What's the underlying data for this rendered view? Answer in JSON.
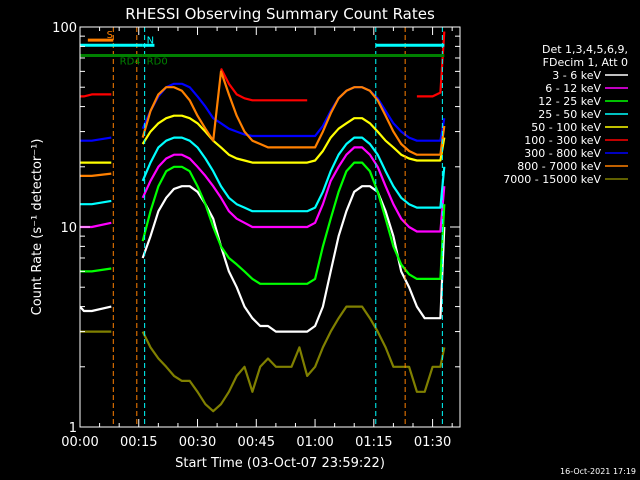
{
  "chart_data": {
    "type": "line",
    "title": "RHESSI Observing Summary Count Rates",
    "xlabel": "Start Time (03-Oct-07 23:59:22)",
    "ylabel": "Count Rate (s⁻¹ detector⁻¹)",
    "yscale": "log",
    "xlim": [
      0,
      97
    ],
    "ylim": [
      1,
      100
    ],
    "x_ticks": [
      {
        "value": 0,
        "label": "00:00"
      },
      {
        "value": 15,
        "label": "00:15"
      },
      {
        "value": 30,
        "label": "00:30"
      },
      {
        "value": 45,
        "label": "00:45"
      },
      {
        "value": 60,
        "label": "01:00"
      },
      {
        "value": 75,
        "label": "01:15"
      },
      {
        "value": 90,
        "label": "01:30"
      }
    ],
    "y_ticks": [
      {
        "value": 1,
        "label": "1"
      },
      {
        "value": 10,
        "label": "10"
      },
      {
        "value": 100,
        "label": "100"
      }
    ],
    "legend_header": [
      "Det 1,3,4,5,6,9,",
      "FDecim 1, Att 0"
    ],
    "legend_position": "right",
    "series": [
      {
        "name": "3 - 6 keV",
        "color": "#ffffff",
        "x": [
          0,
          1,
          3,
          8,
          10,
          12,
          14,
          16,
          18,
          20,
          22,
          24,
          26,
          28,
          30,
          32,
          34,
          36,
          38,
          40,
          42,
          44,
          46,
          48,
          50,
          52,
          54,
          56,
          58,
          60,
          62,
          64,
          66,
          68,
          70,
          72,
          74,
          76,
          78,
          80,
          82,
          84,
          86,
          88,
          90,
          92,
          93
        ],
        "y": [
          4.0,
          3.8,
          3.8,
          4.0,
          null,
          null,
          null,
          7.0,
          9.0,
          12,
          14,
          15.5,
          16,
          16,
          15,
          13,
          11,
          8,
          6,
          5,
          4,
          3.5,
          3.2,
          3.2,
          3.0,
          3.0,
          3.0,
          3.0,
          3.0,
          3.2,
          4,
          6,
          9,
          12,
          15,
          16,
          16,
          15,
          12,
          9,
          6,
          5,
          4,
          3.5,
          3.5,
          3.5,
          10
        ]
      },
      {
        "name": "6 - 12 keV",
        "color": "#ff00ff",
        "x": [
          0,
          1,
          3,
          8,
          10,
          12,
          14,
          16,
          18,
          20,
          22,
          24,
          26,
          28,
          30,
          32,
          34,
          36,
          38,
          40,
          42,
          44,
          46,
          48,
          50,
          52,
          54,
          56,
          58,
          60,
          62,
          64,
          66,
          68,
          70,
          72,
          74,
          76,
          78,
          80,
          82,
          84,
          86,
          88,
          90,
          92,
          93
        ],
        "y": [
          10,
          10,
          10,
          10.5,
          null,
          null,
          null,
          14,
          17,
          20,
          22,
          23,
          23,
          22,
          20,
          18,
          16,
          14,
          12,
          11,
          10.5,
          10,
          10,
          10,
          10,
          10,
          10,
          10,
          10,
          10.5,
          13,
          17,
          20,
          23,
          25,
          25,
          23,
          20,
          16,
          13,
          11,
          10,
          9.5,
          9.5,
          9.5,
          9.5,
          16
        ]
      },
      {
        "name": "12 - 25 keV",
        "color": "#00ff00",
        "x": [
          0,
          1,
          3,
          8,
          10,
          12,
          14,
          16,
          18,
          20,
          22,
          24,
          26,
          28,
          30,
          32,
          34,
          36,
          38,
          40,
          42,
          44,
          46,
          48,
          50,
          52,
          54,
          56,
          58,
          60,
          62,
          64,
          66,
          68,
          70,
          72,
          74,
          76,
          78,
          80,
          82,
          84,
          86,
          88,
          90,
          92,
          93
        ],
        "y": [
          6.0,
          6.0,
          6.0,
          6.2,
          null,
          null,
          null,
          8.5,
          12,
          16,
          19,
          20,
          20,
          19,
          16,
          13,
          10,
          8,
          7,
          6.5,
          6,
          5.5,
          5.2,
          5.2,
          5.2,
          5.2,
          5.2,
          5.2,
          5.2,
          5.5,
          8,
          11,
          15,
          19,
          21,
          21,
          19,
          15,
          11,
          8,
          6.5,
          5.8,
          5.5,
          5.5,
          5.5,
          5.5,
          13
        ]
      },
      {
        "name": "25 - 50 keV",
        "color": "#00ffff",
        "x": [
          0,
          1,
          3,
          8,
          10,
          12,
          14,
          16,
          18,
          20,
          22,
          24,
          26,
          28,
          30,
          32,
          34,
          36,
          38,
          40,
          42,
          44,
          46,
          48,
          50,
          52,
          54,
          56,
          58,
          60,
          62,
          64,
          66,
          68,
          70,
          72,
          74,
          76,
          78,
          80,
          82,
          84,
          86,
          88,
          90,
          92,
          93
        ],
        "y": [
          13,
          13,
          13,
          13.5,
          null,
          null,
          null,
          17,
          21,
          25,
          27,
          28,
          28,
          27,
          25,
          22,
          19,
          16,
          14,
          13,
          12.5,
          12,
          12,
          12,
          12,
          12,
          12,
          12,
          12,
          12.5,
          15,
          19,
          23,
          26,
          28,
          28,
          26,
          23,
          19,
          16,
          14,
          13,
          12.5,
          12.5,
          12.5,
          12.5,
          20
        ]
      },
      {
        "name": "50 - 100 keV",
        "color": "#ffff00",
        "x": [
          0,
          1,
          3,
          8,
          10,
          12,
          14,
          16,
          18,
          20,
          22,
          24,
          26,
          28,
          30,
          32,
          34,
          36,
          38,
          40,
          42,
          44,
          46,
          48,
          50,
          52,
          54,
          56,
          58,
          60,
          62,
          64,
          66,
          68,
          70,
          72,
          74,
          76,
          78,
          80,
          82,
          84,
          86,
          88,
          90,
          92,
          93
        ],
        "y": [
          21,
          21,
          21,
          21,
          null,
          null,
          null,
          26,
          30,
          33,
          35,
          36,
          36,
          35,
          33,
          30,
          27,
          25,
          23,
          22,
          21.5,
          21,
          21,
          21,
          21,
          21,
          21,
          21,
          21,
          21.5,
          24,
          28,
          31,
          33,
          35,
          35,
          33,
          30,
          27,
          25,
          23,
          22,
          21.5,
          21.5,
          21.5,
          21.5,
          28
        ]
      },
      {
        "name": "100 - 300 keV",
        "color": "#ff0000",
        "x": [
          0,
          1,
          3,
          8,
          10,
          12,
          14,
          16,
          18,
          20,
          22,
          24,
          26,
          28,
          30,
          32,
          34,
          36,
          38,
          40,
          42,
          44,
          46,
          48,
          50,
          52,
          54,
          56,
          58,
          60,
          62,
          64,
          66,
          68,
          70,
          72,
          74,
          76,
          78,
          80,
          82,
          84,
          86,
          88,
          90,
          92,
          93
        ],
        "y": [
          45,
          45,
          46,
          46,
          null,
          null,
          null,
          null,
          null,
          null,
          null,
          null,
          null,
          null,
          null,
          null,
          null,
          62,
          52,
          46,
          44,
          43,
          43,
          43,
          43,
          43,
          43,
          43,
          43,
          null,
          null,
          null,
          null,
          null,
          null,
          null,
          null,
          null,
          null,
          null,
          null,
          null,
          45,
          45,
          45,
          47,
          95
        ]
      },
      {
        "name": "300 - 800 keV",
        "color": "#0000ff",
        "x": [
          0,
          1,
          3,
          8,
          10,
          12,
          14,
          16,
          18,
          20,
          22,
          24,
          26,
          28,
          30,
          32,
          34,
          36,
          38,
          40,
          42,
          44,
          46,
          48,
          50,
          52,
          54,
          56,
          58,
          60,
          62,
          64,
          66,
          68,
          70,
          72,
          74,
          76,
          78,
          80,
          82,
          84,
          86,
          88,
          90,
          92,
          93
        ],
        "y": [
          27,
          27,
          27,
          28,
          null,
          null,
          null,
          31,
          38,
          45,
          50,
          52,
          52,
          50,
          45,
          40,
          35,
          33,
          31,
          30,
          29,
          28.5,
          28.5,
          28.5,
          28.5,
          28.5,
          28.5,
          28.5,
          28.5,
          28.5,
          32,
          38,
          44,
          48,
          50,
          50,
          48,
          44,
          38,
          33,
          30,
          28,
          27,
          27,
          27,
          27,
          35
        ]
      },
      {
        "name": "800 - 7000 keV",
        "color": "#ff8000",
        "x": [
          0,
          1,
          3,
          8,
          10,
          12,
          14,
          16,
          18,
          20,
          22,
          24,
          26,
          28,
          30,
          32,
          34,
          36,
          38,
          40,
          42,
          44,
          46,
          48,
          50,
          52,
          54,
          56,
          58,
          60,
          62,
          64,
          66,
          68,
          70,
          72,
          74,
          76,
          78,
          80,
          82,
          84,
          86,
          88,
          90,
          92,
          93
        ],
        "y": [
          18,
          18,
          18,
          18.5,
          null,
          null,
          null,
          28,
          38,
          46,
          50,
          50,
          48,
          43,
          36,
          31,
          27,
          60,
          46,
          36,
          30,
          27,
          26,
          25,
          25,
          25,
          25,
          25,
          25,
          25,
          30,
          37,
          44,
          48,
          50,
          50,
          48,
          43,
          36,
          30,
          26,
          24,
          23,
          23,
          23,
          23,
          32
        ]
      },
      {
        "name": "7000 - 15000 keV",
        "color": "#808000",
        "x": [
          0,
          1,
          3,
          8,
          10,
          12,
          14,
          16,
          18,
          20,
          22,
          24,
          26,
          28,
          30,
          32,
          34,
          36,
          38,
          40,
          42,
          44,
          46,
          48,
          50,
          52,
          54,
          56,
          58,
          60,
          62,
          64,
          66,
          68,
          70,
          72,
          74,
          76,
          78,
          80,
          82,
          84,
          86,
          88,
          90,
          92,
          93
        ],
        "y": [
          3.0,
          3.0,
          3.0,
          3.0,
          null,
          null,
          null,
          3.0,
          2.5,
          2.2,
          2.0,
          1.8,
          1.7,
          1.7,
          1.5,
          1.3,
          1.2,
          1.3,
          1.5,
          1.8,
          2.0,
          1.5,
          2.0,
          2.2,
          2.0,
          2.0,
          2.0,
          2.5,
          1.8,
          2.0,
          2.5,
          3.0,
          3.5,
          4.0,
          4.0,
          4.0,
          3.5,
          3.0,
          2.5,
          2.0,
          2.0,
          2.0,
          1.5,
          1.5,
          2.0,
          2.0,
          2.5
        ]
      }
    ],
    "annotations": [
      {
        "label": "S",
        "x": [
          2,
          8.5
        ],
        "y": 86,
        "color": "#ff8000"
      },
      {
        "label": "N",
        "x": [
          16,
          19
        ],
        "y": 81,
        "color": "#00ffff"
      },
      {
        "label": "",
        "x": [
          0,
          16
        ],
        "y": 81,
        "color": "#00ffff"
      },
      {
        "label": "",
        "x": [
          75.5,
          93
        ],
        "y": 81,
        "color": "#00ffff"
      },
      {
        "label": "RD4",
        "x": [
          0,
          16
        ],
        "y": 72,
        "color": "#008000"
      },
      {
        "label": "RD0",
        "x": [
          16,
          93
        ],
        "y": 72,
        "color": "#008000"
      }
    ],
    "vlines": [
      {
        "x": 0,
        "color": "#00ffff"
      },
      {
        "x": 8.5,
        "color": "#ff8000"
      },
      {
        "x": 14.5,
        "color": "#ff8000"
      },
      {
        "x": 16.5,
        "color": "#00ffff"
      },
      {
        "x": 75.5,
        "color": "#00ffff"
      },
      {
        "x": 83,
        "color": "#ff8000"
      },
      {
        "x": 92.5,
        "color": "#00ffff"
      }
    ],
    "timestamp": "16-Oct-2021 17:19"
  }
}
